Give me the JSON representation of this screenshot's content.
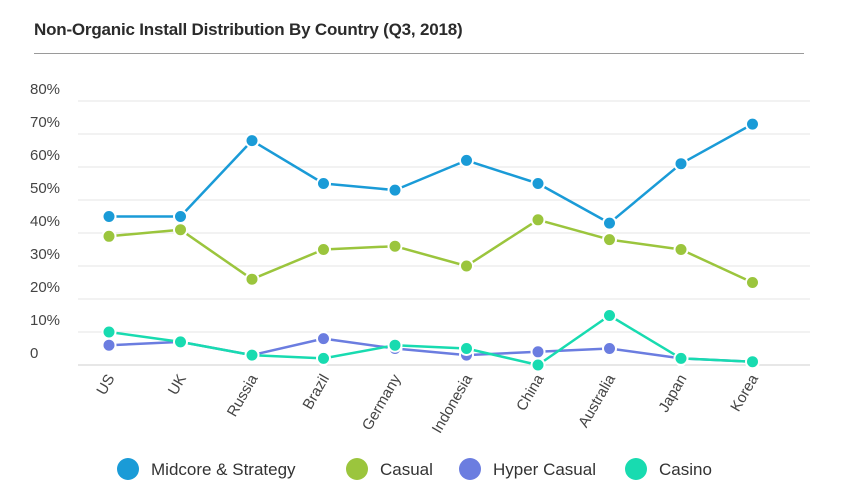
{
  "title": "Non-Organic Install Distribution By Country (Q3, 2018)",
  "chart_data": {
    "type": "line",
    "title": "Non-Organic Install Distribution By Country (Q3, 2018)",
    "xlabel": "",
    "ylabel": "",
    "categories": [
      "US",
      "UK",
      "Russia",
      "Brazil",
      "Germany",
      "Indonesia",
      "China",
      "Australia",
      "Japan",
      "Korea"
    ],
    "ylim": [
      0,
      80
    ],
    "yticks": [
      {
        "value": 0,
        "label": "0"
      },
      {
        "value": 10,
        "label": "10%"
      },
      {
        "value": 20,
        "label": "20%"
      },
      {
        "value": 30,
        "label": "30%"
      },
      {
        "value": 40,
        "label": "40%"
      },
      {
        "value": 50,
        "label": "50%"
      },
      {
        "value": 60,
        "label": "60%"
      },
      {
        "value": 70,
        "label": "70%"
      },
      {
        "value": 80,
        "label": "80%"
      }
    ],
    "grid": true,
    "legend_position": "bottom",
    "series": [
      {
        "name": "Midcore & Strategy",
        "color": "#1a9bd7",
        "values": [
          45,
          45,
          68,
          55,
          53,
          62,
          55,
          43,
          61,
          73
        ]
      },
      {
        "name": "Casual",
        "color": "#9bc53d",
        "values": [
          39,
          41,
          26,
          35,
          36,
          30,
          44,
          38,
          35,
          25
        ]
      },
      {
        "name": "Hyper Casual",
        "color": "#6b7de0",
        "values": [
          6,
          7,
          3,
          8,
          5,
          3,
          4,
          5,
          2,
          1
        ]
      },
      {
        "name": "Casino",
        "color": "#18dbb0",
        "values": [
          10,
          7,
          3,
          2,
          6,
          5,
          0,
          15,
          2,
          1
        ]
      }
    ]
  }
}
